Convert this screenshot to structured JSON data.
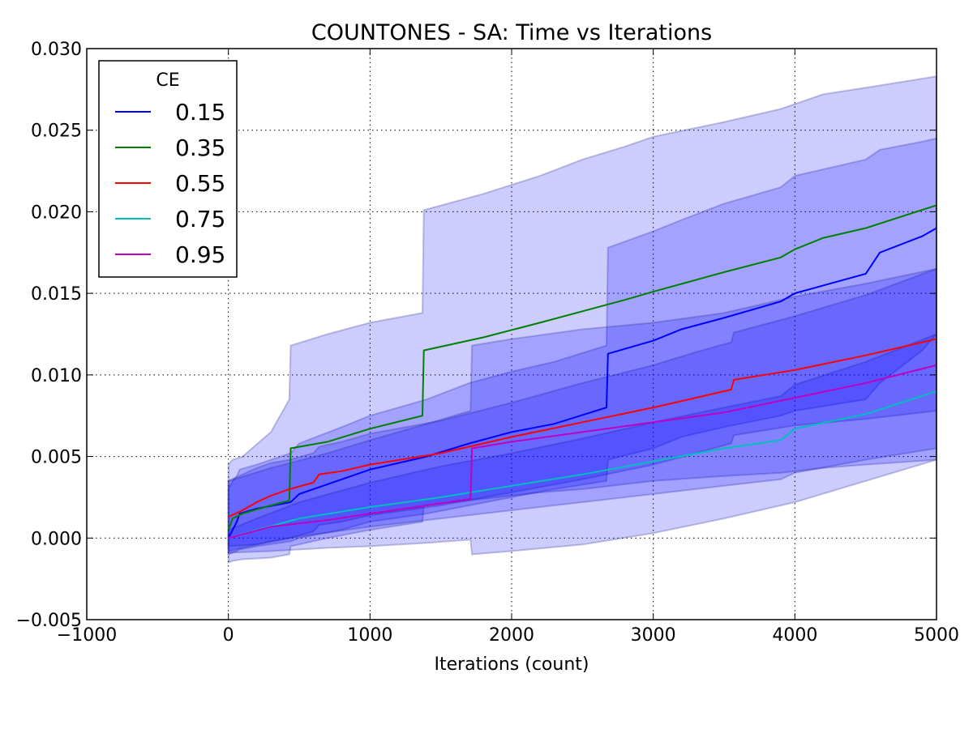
{
  "chart_data": {
    "type": "line",
    "title": "COUNTONES - SA: Time vs Iterations",
    "xlabel": "Iterations (count)",
    "ylabel": "",
    "xlim": [
      -1000,
      5000
    ],
    "ylim": [
      -0.005,
      0.03
    ],
    "xticks": [
      -1000,
      0,
      1000,
      2000,
      3000,
      4000,
      5000
    ],
    "xtick_labels": [
      "−1000",
      "0",
      "1000",
      "2000",
      "3000",
      "4000",
      "5000"
    ],
    "yticks": [
      -0.005,
      0.0,
      0.005,
      0.01,
      0.015,
      0.02,
      0.025,
      0.03
    ],
    "ytick_labels": [
      "−0.005",
      "0.000",
      "0.005",
      "0.010",
      "0.015",
      "0.020",
      "0.025",
      "0.030"
    ],
    "grid": true,
    "legend": {
      "title": "CE",
      "position": "top-left"
    },
    "band_color": "#0000ff",
    "series": [
      {
        "name": "0.15",
        "color": "#0000ff",
        "x": [
          0,
          30,
          60,
          80,
          200,
          440,
          500,
          800,
          1000,
          1400,
          1700,
          2000,
          2300,
          2670,
          2680,
          3000,
          3200,
          3500,
          3900,
          4000,
          4500,
          4600,
          4900,
          5000
        ],
        "y": [
          0.0,
          0.0005,
          0.001,
          0.0015,
          0.0018,
          0.0022,
          0.0027,
          0.0036,
          0.0042,
          0.005,
          0.0058,
          0.0065,
          0.007,
          0.008,
          0.0113,
          0.0121,
          0.0128,
          0.0135,
          0.0145,
          0.015,
          0.0162,
          0.0175,
          0.0185,
          0.019
        ],
        "band_upper": [
          0.003,
          0.0035,
          0.0038,
          0.0042,
          0.0045,
          0.0052,
          0.0058,
          0.0068,
          0.0075,
          0.0085,
          0.0095,
          0.0102,
          0.0108,
          0.0118,
          0.0178,
          0.0188,
          0.0195,
          0.0205,
          0.0215,
          0.0222,
          0.0232,
          0.0238,
          0.0243,
          0.0245
        ],
        "band_lower": [
          -0.001,
          -0.0009,
          -0.0008,
          -0.0007,
          -0.0005,
          -0.0002,
          0.0,
          0.0005,
          0.001,
          0.0015,
          0.002,
          0.0025,
          0.003,
          0.0035,
          0.0048,
          0.0055,
          0.0062,
          0.0068,
          0.0075,
          0.0078,
          0.0085,
          0.0095,
          0.0115,
          0.0125
        ]
      },
      {
        "name": "0.35",
        "color": "#008000",
        "x": [
          0,
          30,
          100,
          300,
          430,
          440,
          700,
          1000,
          1370,
          1380,
          1800,
          2200,
          2500,
          2800,
          3000,
          3500,
          3900,
          4000,
          4200,
          4500,
          5000
        ],
        "y": [
          0.0005,
          0.0012,
          0.0015,
          0.002,
          0.0023,
          0.0055,
          0.0059,
          0.0067,
          0.0075,
          0.0115,
          0.0123,
          0.0132,
          0.0139,
          0.0146,
          0.0151,
          0.0163,
          0.0172,
          0.0177,
          0.0184,
          0.019,
          0.0204
        ],
        "band_upper": [
          0.0045,
          0.0048,
          0.005,
          0.0065,
          0.0085,
          0.0118,
          0.0125,
          0.0132,
          0.0138,
          0.0201,
          0.0211,
          0.0222,
          0.0232,
          0.024,
          0.0246,
          0.0255,
          0.0263,
          0.0266,
          0.0272,
          0.0276,
          0.0283
        ],
        "band_lower": [
          -0.0015,
          -0.0014,
          -0.0013,
          -0.0012,
          -0.001,
          -0.0005,
          0.0,
          0.0005,
          0.001,
          0.002,
          0.0024,
          0.0028,
          0.003,
          0.0033,
          0.0035,
          0.0038,
          0.004,
          0.0041,
          0.0043,
          0.0045,
          0.0048
        ]
      },
      {
        "name": "0.55",
        "color": "#ff0000",
        "x": [
          0,
          100,
          200,
          300,
          430,
          600,
          640,
          800,
          1000,
          1500,
          2000,
          2500,
          3000,
          3300,
          3550,
          3570,
          4000,
          4500,
          5000
        ],
        "y": [
          0.0013,
          0.0017,
          0.0022,
          0.0026,
          0.003,
          0.0034,
          0.0039,
          0.0041,
          0.0045,
          0.0052,
          0.0062,
          0.0071,
          0.008,
          0.0086,
          0.0091,
          0.0097,
          0.0103,
          0.0112,
          0.0122
        ],
        "band_upper": [
          0.0035,
          0.0039,
          0.0043,
          0.0046,
          0.0048,
          0.0052,
          0.0056,
          0.0059,
          0.0064,
          0.0072,
          0.0083,
          0.0095,
          0.0106,
          0.0114,
          0.012,
          0.0126,
          0.0136,
          0.0149,
          0.0165
        ],
        "band_lower": [
          -0.0008,
          -0.0006,
          -0.0004,
          -0.0002,
          0.0,
          0.0004,
          0.0008,
          0.001,
          0.0014,
          0.002,
          0.0028,
          0.0036,
          0.0045,
          0.0052,
          0.0058,
          0.0063,
          0.0069,
          0.0073,
          0.0078
        ]
      },
      {
        "name": "0.75",
        "color": "#00bfbf",
        "x": [
          0,
          200,
          500,
          1000,
          1500,
          2000,
          2500,
          3000,
          3500,
          3900,
          4000,
          4500,
          5000
        ],
        "y": [
          0.0,
          0.0005,
          0.0012,
          0.0019,
          0.0025,
          0.0032,
          0.0039,
          0.0047,
          0.0055,
          0.006,
          0.0067,
          0.0076,
          0.009
        ],
        "band_upper": [
          0.0005,
          0.0012,
          0.0022,
          0.0034,
          0.0044,
          0.0052,
          0.0061,
          0.0071,
          0.008,
          0.0087,
          0.0094,
          0.0108,
          0.0125
        ],
        "band_lower": [
          -0.0005,
          -0.0004,
          0.0001,
          0.0007,
          0.0012,
          0.0017,
          0.0022,
          0.0027,
          0.0032,
          0.0036,
          0.004,
          0.0048,
          0.0055
        ]
      },
      {
        "name": "0.95",
        "color": "#bf00bf",
        "x": [
          0,
          300,
          700,
          1000,
          1400,
          1710,
          1720,
          2000,
          2500,
          3000,
          3500,
          4000,
          4500,
          5000
        ],
        "y": [
          0.0,
          0.0007,
          0.0011,
          0.0015,
          0.002,
          0.0024,
          0.0055,
          0.0059,
          0.0065,
          0.0071,
          0.0077,
          0.0086,
          0.0095,
          0.0106
        ],
        "band_upper": [
          0.0035,
          0.0043,
          0.0052,
          0.006,
          0.007,
          0.0078,
          0.0118,
          0.0122,
          0.0128,
          0.0132,
          0.0138,
          0.0148,
          0.0156,
          0.0165
        ],
        "band_lower": [
          -0.0009,
          -0.0008,
          -0.0006,
          -0.0005,
          -0.0003,
          -0.0001,
          -0.001,
          -0.0008,
          -0.0004,
          0.0003,
          0.0012,
          0.0022,
          0.0035,
          0.0048
        ]
      }
    ]
  }
}
